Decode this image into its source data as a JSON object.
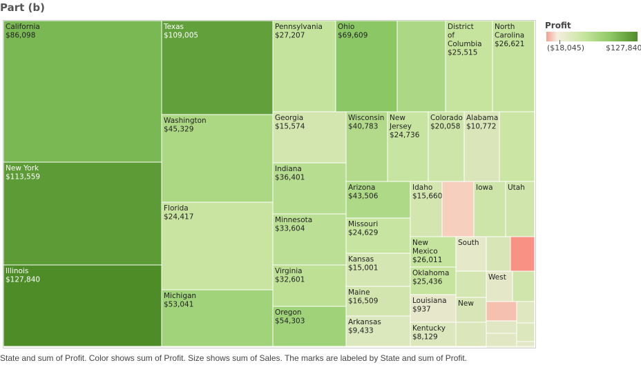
{
  "title": "Part (b)",
  "footer": "State and sum of Profit.  Color shows sum of Profit.  Size shows sum of Sales.  The marks are labeled by State and sum of Profit.",
  "legend": {
    "title": "Profit",
    "min_label": "($18,045)",
    "max_label": "$127,840",
    "min": -18045,
    "max": 127840
  },
  "chart_data": {
    "type": "treemap",
    "size_measure": "sum of Sales",
    "color_measure": "sum of Profit",
    "states": [
      {
        "name": "California",
        "profit_label": "$86,098",
        "profit": 86098
      },
      {
        "name": "New York",
        "profit_label": "$113,559",
        "profit": 113559
      },
      {
        "name": "Illinois",
        "profit_label": "$127,840",
        "profit": 127840
      },
      {
        "name": "Texas",
        "profit_label": "$109,005",
        "profit": 109005
      },
      {
        "name": "Washington",
        "profit_label": "$45,329",
        "profit": 45329
      },
      {
        "name": "Florida",
        "profit_label": "$24,417",
        "profit": 24417
      },
      {
        "name": "Michigan",
        "profit_label": "$53,041",
        "profit": 53041
      },
      {
        "name": "Pennsylvania",
        "profit_label": "$27,207",
        "profit": 27207
      },
      {
        "name": "Ohio",
        "profit_label": "$69,609",
        "profit": 69609
      },
      {
        "name": "",
        "profit_label": "",
        "profit": 45000
      },
      {
        "name": "District of Columbia",
        "profit_label": "$25,515",
        "profit": 25515
      },
      {
        "name": "North Carolina",
        "profit_label": "$26,621",
        "profit": 26621
      },
      {
        "name": "Georgia",
        "profit_label": "$15,574",
        "profit": 15574
      },
      {
        "name": "Wisconsin",
        "profit_label": "$40,783",
        "profit": 40783
      },
      {
        "name": "New Jersey",
        "profit_label": "$24,736",
        "profit": 24736
      },
      {
        "name": "Colorado",
        "profit_label": "$20,058",
        "profit": 20058
      },
      {
        "name": "Alabama",
        "profit_label": "$10,772",
        "profit": 10772
      },
      {
        "name": "",
        "profit_label": "",
        "profit": 22000
      },
      {
        "name": "Indiana",
        "profit_label": "$36,401",
        "profit": 36401
      },
      {
        "name": "Minnesota",
        "profit_label": "$33,604",
        "profit": 33604
      },
      {
        "name": "Virginia",
        "profit_label": "$32,601",
        "profit": 32601
      },
      {
        "name": "Oregon",
        "profit_label": "$54,303",
        "profit": 54303
      },
      {
        "name": "Arizona",
        "profit_label": "$43,506",
        "profit": 43506
      },
      {
        "name": "Missouri",
        "profit_label": "$24,629",
        "profit": 24629
      },
      {
        "name": "Kansas",
        "profit_label": "$15,001",
        "profit": 15001
      },
      {
        "name": "Maine",
        "profit_label": "$16,509",
        "profit": 16509
      },
      {
        "name": "Arkansas",
        "profit_label": "$9,433",
        "profit": 9433
      },
      {
        "name": "Idaho",
        "profit_label": "$15,660",
        "profit": 15660
      },
      {
        "name": "",
        "profit_label": "",
        "profit": -6000
      },
      {
        "name": "Iowa",
        "profit_label": "",
        "profit": 20000
      },
      {
        "name": "Utah",
        "profit_label": "",
        "profit": 18000
      },
      {
        "name": "New Mexico",
        "profit_label": "$26,011",
        "profit": 26011
      },
      {
        "name": "South",
        "profit_label": "",
        "profit": 2000
      },
      {
        "name": "",
        "profit_label": "",
        "profit": 12000
      },
      {
        "name": "",
        "profit_label": "",
        "profit": -18045
      },
      {
        "name": "Oklahoma",
        "profit_label": "$25,436",
        "profit": 25436
      },
      {
        "name": "",
        "profit_label": "",
        "profit": 15000
      },
      {
        "name": "West",
        "profit_label": "",
        "profit": 2500
      },
      {
        "name": "",
        "profit_label": "",
        "profit": 18000
      },
      {
        "name": "Louisiana",
        "profit_label": "$937",
        "profit": 937
      },
      {
        "name": "New",
        "profit_label": "",
        "profit": 12000
      },
      {
        "name": "",
        "profit_label": "",
        "profit": -9000
      },
      {
        "name": "",
        "profit_label": "",
        "profit": 7000
      },
      {
        "name": "Kentucky",
        "profit_label": "$8,129",
        "profit": 8129
      },
      {
        "name": "",
        "profit_label": "",
        "profit": 10000
      },
      {
        "name": "",
        "profit_label": "",
        "profit": 5000
      },
      {
        "name": "",
        "profit_label": "",
        "profit": 6000
      },
      {
        "name": "",
        "profit_label": "",
        "profit": 8000
      },
      {
        "name": "",
        "profit_label": "",
        "profit": 4000
      },
      {
        "name": "",
        "profit_label": "",
        "profit": 3000
      }
    ]
  }
}
